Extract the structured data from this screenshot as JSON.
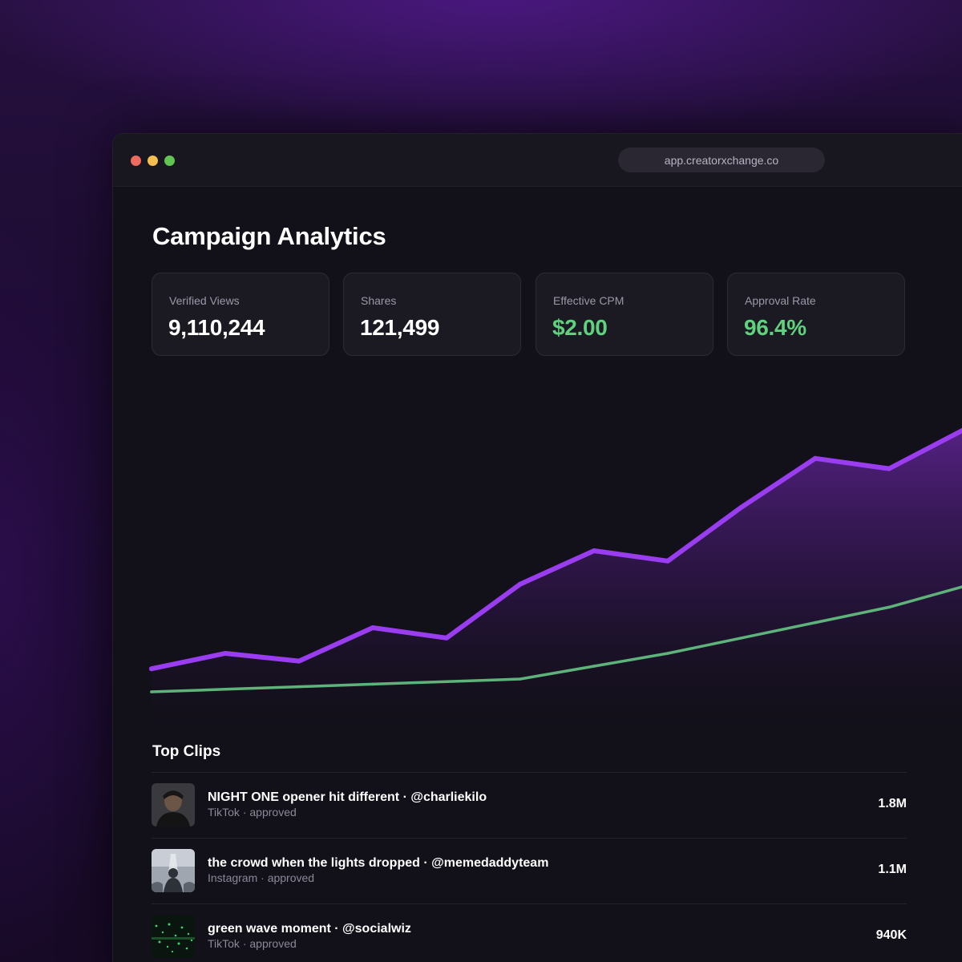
{
  "browser": {
    "url": "app.creatorxchange.co"
  },
  "page": {
    "title": "Campaign Analytics"
  },
  "stats": [
    {
      "label": "Verified Views",
      "value": "9,110,244",
      "accent": "#ffffff"
    },
    {
      "label": "Shares",
      "value": "121,499",
      "accent": "#ffffff"
    },
    {
      "label": "Effective CPM",
      "value": "$2.00",
      "accent": "#5fd17f"
    },
    {
      "label": "Approval Rate",
      "value": "96.4%",
      "accent": "#5fd17f"
    }
  ],
  "chart_data": {
    "type": "area",
    "title": "",
    "xlabel": "",
    "ylabel": "",
    "grid": false,
    "x": [
      1,
      2,
      3,
      4,
      5,
      6,
      7,
      8,
      9,
      10,
      11,
      12
    ],
    "ylim": [
      0,
      100
    ],
    "series": [
      {
        "color": "#9a3df0",
        "fill": true,
        "values": [
          4,
          10,
          7,
          20,
          16,
          37,
          50,
          46,
          67,
          86,
          82,
          97
        ]
      },
      {
        "color": "#5db37a",
        "fill": false,
        "values": [
          -5,
          -4,
          -3,
          -2,
          -1,
          0,
          5,
          10,
          16,
          22,
          28,
          36
        ]
      }
    ]
  },
  "top_clips": {
    "title": "Top Clips",
    "items": [
      {
        "title": "NIGHT ONE opener hit different · @charliekilo",
        "platform": "TikTok",
        "status": "approved",
        "separator": " · ",
        "views": "1.8M",
        "thumb_icon": "portrait-thumbnail"
      },
      {
        "title": "the crowd when the lights dropped · @memedaddyteam",
        "platform": "Instagram",
        "status": "approved",
        "separator": " · ",
        "views": "1.1M",
        "thumb_icon": "concert-crowd-thumbnail"
      },
      {
        "title": "green wave moment · @socialwiz",
        "platform": "TikTok",
        "status": "approved",
        "separator": " · ",
        "views": "940K",
        "thumb_icon": "green-lights-thumbnail"
      }
    ]
  }
}
